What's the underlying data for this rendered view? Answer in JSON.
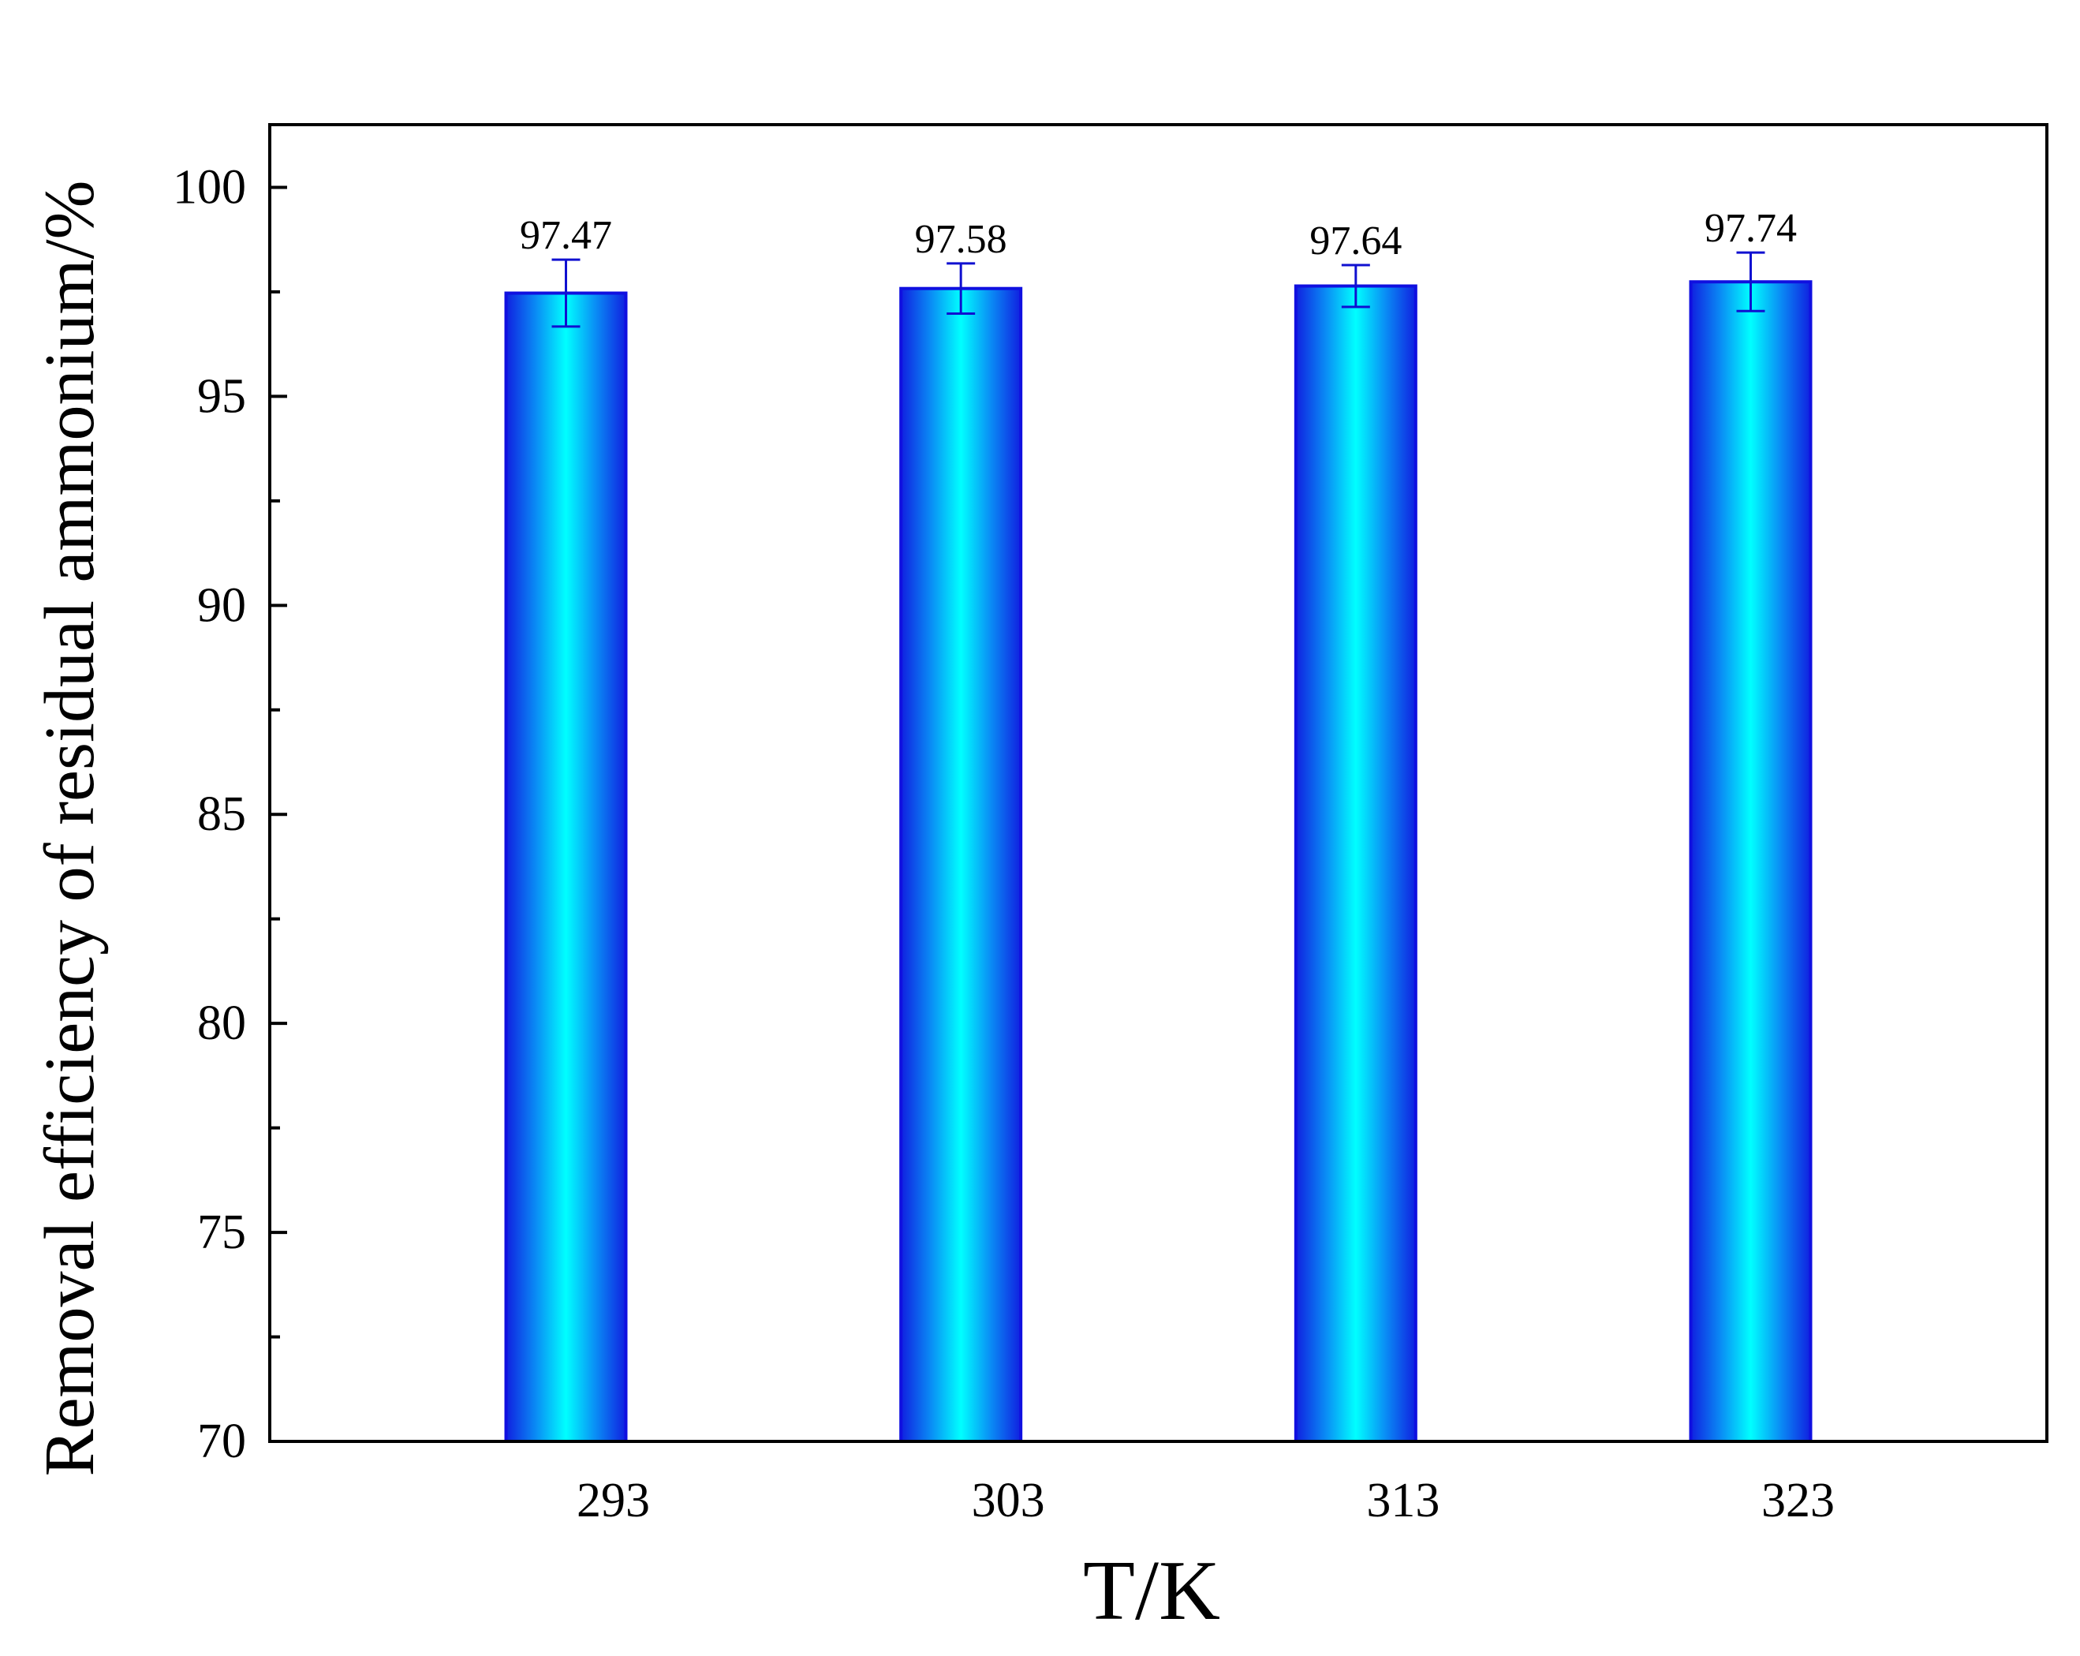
{
  "chart_data": {
    "type": "bar",
    "title": "",
    "xlabel": "T/K",
    "ylabel": "Removal efficiency of residual ammonium/%",
    "categories": [
      "293",
      "303",
      "313",
      "323"
    ],
    "values": [
      97.47,
      97.58,
      97.64,
      97.74
    ],
    "error_low": [
      0.8,
      0.6,
      0.5,
      0.7
    ],
    "error_high": [
      0.8,
      0.6,
      0.5,
      0.7
    ],
    "data_labels": [
      "97.47",
      "97.58",
      "97.64",
      "97.74"
    ],
    "ylim": [
      70,
      101.5
    ],
    "yticks": [
      70,
      75,
      80,
      85,
      90,
      95,
      100
    ],
    "ytick_labels": [
      "70",
      "75",
      "80",
      "85",
      "90",
      "95",
      "100"
    ],
    "grid": false,
    "colors": {
      "bar_edge": "#1010e0",
      "bar_center": "#00ffff",
      "bar_side": "#1030e8",
      "error_bar": "#1010d0",
      "axis": "#000000"
    }
  }
}
